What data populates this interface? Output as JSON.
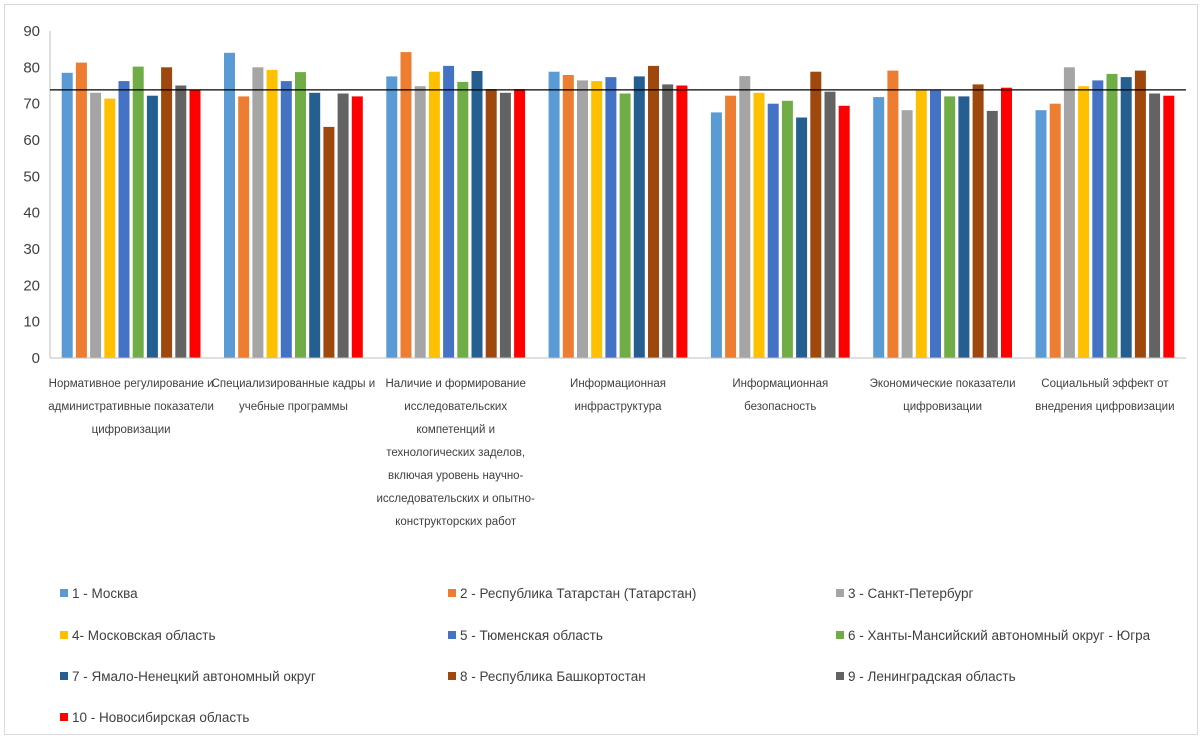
{
  "chart_data": {
    "type": "bar",
    "ylim": [
      0,
      90
    ],
    "y_ticks": [
      "0",
      "10",
      "20",
      "30",
      "40",
      "50",
      "60",
      "70",
      "80",
      "90"
    ],
    "reference_line": 73.8,
    "grid": false,
    "legend_position": "bottom",
    "categories": [
      [
        "Нормативное регулирование и",
        "административные показатели",
        "цифровизации"
      ],
      [
        "Специализированные кадры и",
        "учебные программы"
      ],
      [
        "Наличие и формирование",
        "исследовательских",
        "компетенций и",
        "технологических заделов,",
        "включая уровень научно-",
        "исследовательских и опытно-",
        "конструкторских работ"
      ],
      [
        "Информационная",
        "инфраструктура"
      ],
      [
        "Информационная",
        "безопасность"
      ],
      [
        "Экономические показатели",
        "цифровизации"
      ],
      [
        "Социальный эффект от",
        "внедрения цифровизации"
      ]
    ],
    "series": [
      {
        "name": "1 - Москва",
        "color": "#5b9bd5",
        "values": [
          78.5,
          84.0,
          77.5,
          78.8,
          67.6,
          71.8,
          68.2
        ]
      },
      {
        "name": "2 - Республика Татарстан (Татарстан)",
        "color": "#ed7d31",
        "values": [
          81.3,
          72.0,
          84.2,
          77.9,
          72.2,
          79.1,
          70.0
        ]
      },
      {
        "name": "3 - Санкт-Петербург",
        "color": "#a5a5a5",
        "values": [
          73.0,
          80.0,
          74.8,
          76.4,
          77.6,
          68.2,
          80.0
        ]
      },
      {
        "name": "4- Московская область",
        "color": "#ffc000",
        "values": [
          71.4,
          79.3,
          78.8,
          76.2,
          73.0,
          73.6,
          74.8
        ]
      },
      {
        "name": "5 - Тюменская область",
        "color": "#4472c4",
        "values": [
          76.2,
          76.2,
          80.4,
          77.3,
          70.0,
          73.6,
          76.4
        ]
      },
      {
        "name": "6 - Ханты-Мансийский автономный округ - Югра",
        "color": "#70ad47",
        "values": [
          80.2,
          78.7,
          76.0,
          72.8,
          70.8,
          72.0,
          78.2
        ]
      },
      {
        "name": "7 - Ямало-Ненецкий автономный округ",
        "color": "#255e91",
        "values": [
          72.2,
          73.0,
          79.0,
          77.5,
          66.2,
          72.0,
          77.3
        ]
      },
      {
        "name": "8 - Республика Башкортостан",
        "color": "#9e480e",
        "values": [
          80.0,
          63.6,
          74.0,
          80.4,
          78.8,
          75.3,
          79.1
        ]
      },
      {
        "name": "9 - Ленинградская область",
        "color": "#636363",
        "values": [
          75.0,
          72.8,
          73.0,
          75.3,
          73.3,
          68.0,
          72.8
        ]
      },
      {
        "name": "10 - Новосибирская область",
        "color": "#ff0000",
        "values": [
          73.8,
          72.0,
          74.0,
          75.0,
          69.4,
          74.4,
          72.2
        ]
      }
    ]
  }
}
